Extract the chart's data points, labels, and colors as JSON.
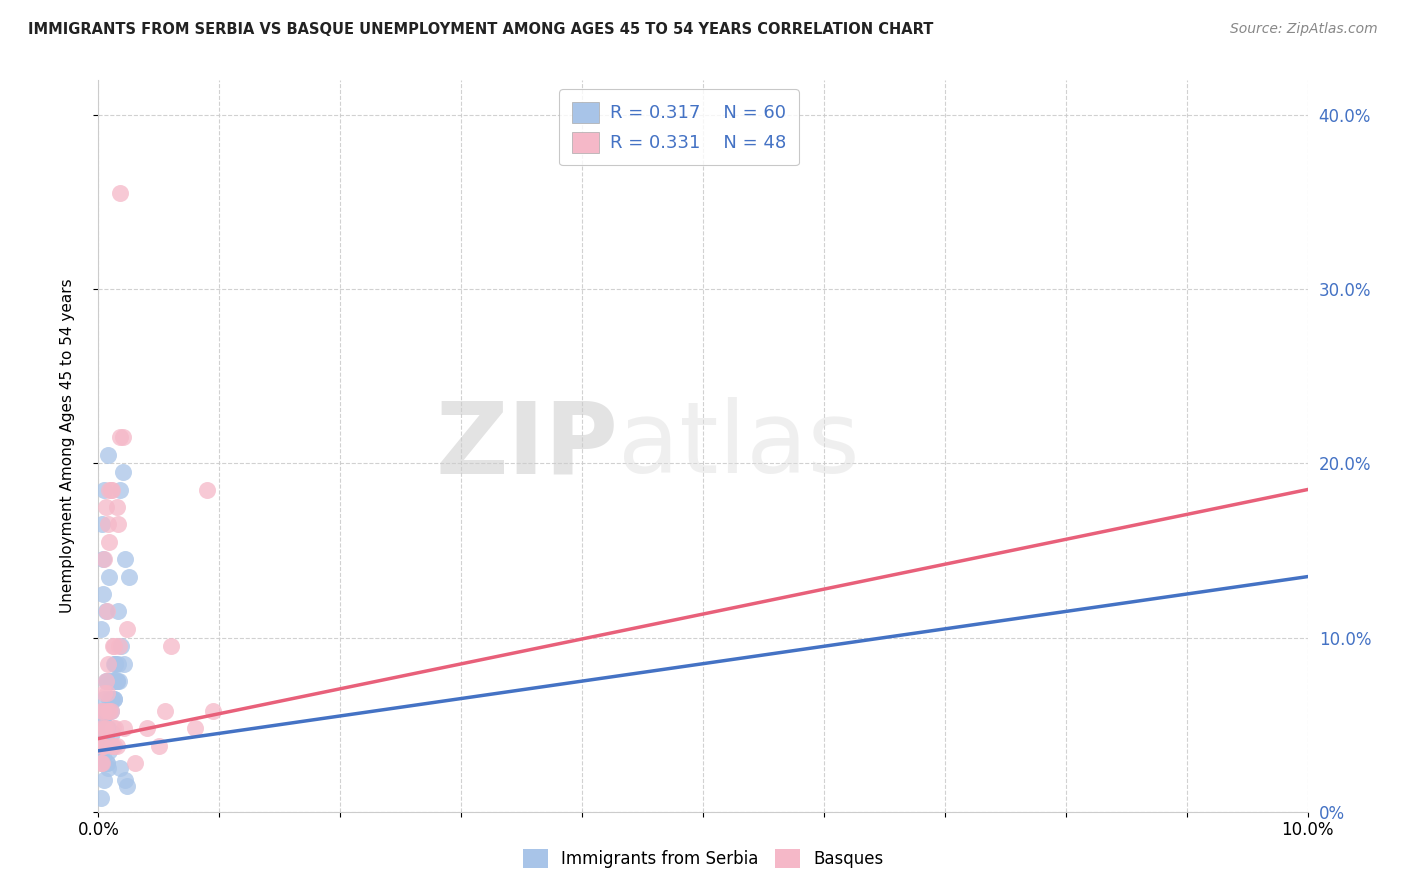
{
  "title": "IMMIGRANTS FROM SERBIA VS BASQUE UNEMPLOYMENT AMONG AGES 45 TO 54 YEARS CORRELATION CHART",
  "source": "Source: ZipAtlas.com",
  "ylabel": "Unemployment Among Ages 45 to 54 years",
  "r1": 0.317,
  "n1": 60,
  "r2": 0.331,
  "n2": 48,
  "legend_label1": "Immigrants from Serbia",
  "legend_label2": "Basques",
  "color1": "#a8c4e8",
  "color2": "#f5b8c8",
  "line_color1": "#4472c4",
  "line_color2": "#e8607a",
  "watermark_zip": "ZIP",
  "watermark_atlas": "atlas",
  "xmin": 0.0,
  "xmax": 0.1,
  "ymin": 0.0,
  "ymax": 0.42,
  "yticks": [
    0.0,
    0.1,
    0.2,
    0.3,
    0.4
  ],
  "xticks": [
    0.0,
    0.01,
    0.02,
    0.03,
    0.04,
    0.05,
    0.06,
    0.07,
    0.08,
    0.09,
    0.1
  ],
  "trend1_x0": 0.0,
  "trend1_y0": 0.035,
  "trend1_x1": 0.1,
  "trend1_y1": 0.135,
  "trend2_x0": 0.0,
  "trend2_y0": 0.042,
  "trend2_x1": 0.1,
  "trend2_y1": 0.185,
  "scatter1_x": [
    0.0003,
    0.0005,
    0.0002,
    0.0008,
    0.0004,
    0.0006,
    0.001,
    0.0007,
    0.0003,
    0.0002,
    0.0004,
    0.0006,
    0.0008,
    0.0005,
    0.0003,
    0.0009,
    0.0007,
    0.0012,
    0.001,
    0.0015,
    0.0013,
    0.0016,
    0.002,
    0.0022,
    0.0018,
    0.0014,
    0.0025,
    0.0021,
    0.0017,
    0.0011,
    0.0002,
    0.0003,
    0.0005,
    0.0002,
    0.0007,
    0.0004,
    0.0009,
    0.0006,
    0.0011,
    0.0008,
    0.0004,
    0.0002,
    0.0006,
    0.0005,
    0.001,
    0.0013,
    0.0016,
    0.0012,
    0.0019,
    0.0014,
    0.0022,
    0.0018,
    0.0024,
    0.0011,
    0.0009,
    0.0007,
    0.0005,
    0.0002,
    0.0015,
    0.0013
  ],
  "scatter1_y": [
    0.05,
    0.055,
    0.038,
    0.048,
    0.032,
    0.042,
    0.058,
    0.048,
    0.055,
    0.038,
    0.125,
    0.115,
    0.205,
    0.185,
    0.165,
    0.135,
    0.075,
    0.075,
    0.065,
    0.075,
    0.085,
    0.115,
    0.195,
    0.145,
    0.185,
    0.085,
    0.135,
    0.085,
    0.075,
    0.065,
    0.048,
    0.028,
    0.018,
    0.038,
    0.028,
    0.058,
    0.065,
    0.075,
    0.038,
    0.025,
    0.145,
    0.105,
    0.048,
    0.065,
    0.075,
    0.065,
    0.085,
    0.075,
    0.095,
    0.085,
    0.018,
    0.025,
    0.015,
    0.045,
    0.035,
    0.028,
    0.055,
    0.008,
    0.075,
    0.065
  ],
  "scatter2_x": [
    0.0002,
    0.0005,
    0.0003,
    0.0007,
    0.0004,
    0.0002,
    0.0008,
    0.0005,
    0.0007,
    0.001,
    0.0006,
    0.0009,
    0.0012,
    0.0008,
    0.0011,
    0.0015,
    0.0013,
    0.0018,
    0.0016,
    0.002,
    0.0003,
    0.0004,
    0.0007,
    0.0005,
    0.0009,
    0.0006,
    0.0012,
    0.001,
    0.0015,
    0.0013,
    0.0018,
    0.0021,
    0.0024,
    0.0017,
    0.0014,
    0.0011,
    0.0009,
    0.0006,
    0.0004,
    0.0002,
    0.003,
    0.004,
    0.005,
    0.0055,
    0.006,
    0.008,
    0.009,
    0.0095
  ],
  "scatter2_y": [
    0.058,
    0.048,
    0.038,
    0.068,
    0.058,
    0.048,
    0.165,
    0.145,
    0.115,
    0.185,
    0.175,
    0.185,
    0.095,
    0.085,
    0.185,
    0.175,
    0.095,
    0.215,
    0.165,
    0.215,
    0.028,
    0.038,
    0.058,
    0.068,
    0.058,
    0.075,
    0.048,
    0.058,
    0.038,
    0.038,
    0.355,
    0.048,
    0.105,
    0.095,
    0.048,
    0.038,
    0.155,
    0.048,
    0.038,
    0.028,
    0.028,
    0.048,
    0.038,
    0.058,
    0.095,
    0.048,
    0.185,
    0.058
  ]
}
